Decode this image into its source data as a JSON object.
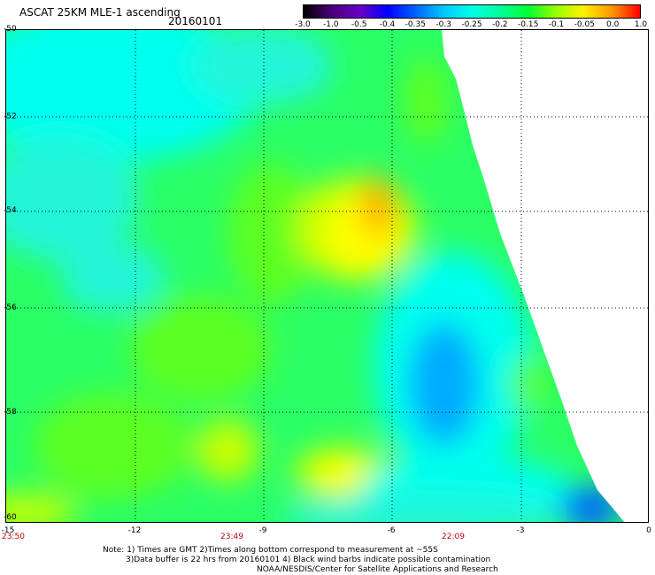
{
  "header": {
    "title": "ASCAT 25KM MLE-1 ascending",
    "date": "20160101"
  },
  "colorbar": {
    "labels": [
      "-3.0",
      "-1.0",
      "-0.5",
      "-0.4",
      "-0.35",
      "-0.3",
      "-0.25",
      "-0.2",
      "-0.15",
      "-0.1",
      "-0.05",
      "0.0",
      "1.0"
    ],
    "colors": [
      "#000000",
      "#4a007a",
      "#6a00c8",
      "#0000ff",
      "#0064ff",
      "#00c8ff",
      "#00ffe6",
      "#00ff9a",
      "#00ff32",
      "#96ff00",
      "#fff000",
      "#ff9600",
      "#ff0000"
    ]
  },
  "map": {
    "lon_ticks": [
      "-15",
      "-12",
      "-9",
      "-6",
      "-3",
      "0"
    ],
    "lat_ticks": [
      "-50",
      "-52",
      "-54",
      "-56",
      "-58",
      "-60"
    ],
    "time_labels": [
      "23:50",
      "23:49",
      "22:09"
    ],
    "lon_range": [
      -15,
      0
    ],
    "lat_range": [
      -60,
      -50
    ],
    "grid": "dotted",
    "palette": {
      "cyan": "#00ffee",
      "aqua": "#22f5d8",
      "green": "#2bff66",
      "lime": "#5cff22",
      "yellowgreen": "#c8ff00",
      "yellow": "#ffff00",
      "orange": "#ffb000",
      "blue": "#00aaff",
      "deepblue": "#0066ff"
    }
  },
  "notes": {
    "line1": "Note: 1) Times are GMT 2)Times along bottom correspond to measurement at ~55S",
    "line2": "3)Data buffer is 22 hrs from 20160101 4) Black wind barbs indicate possible contamination",
    "line3": "NOAA/NESDIS/Center for Satellite Applications and Research"
  }
}
